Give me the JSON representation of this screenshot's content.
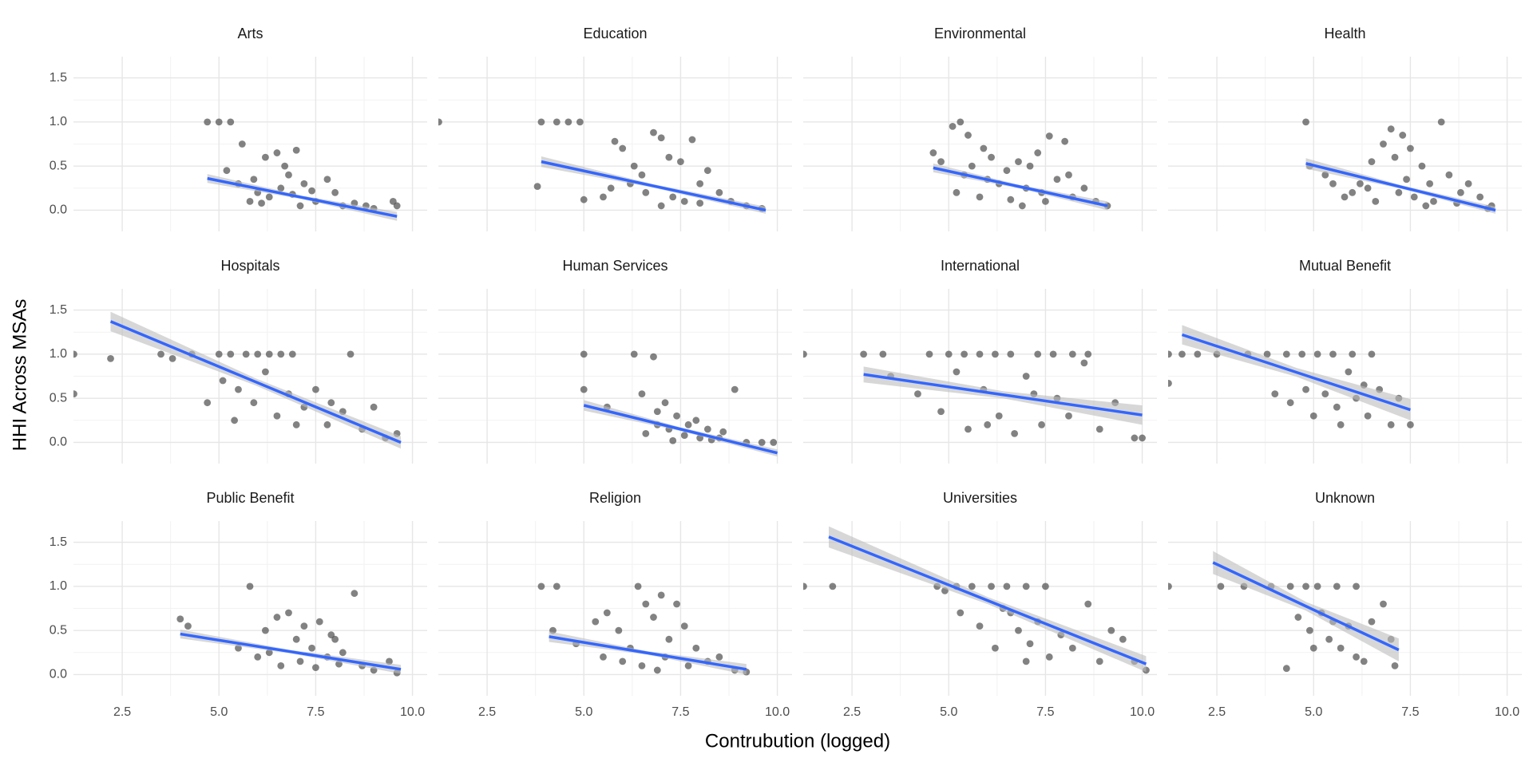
{
  "chart_data": {
    "type": "scatter",
    "x_label": "Contrubution (logged)",
    "y_label": "HHI Across MSAs",
    "xlim": [
      1.24,
      10.38
    ],
    "ylim": [
      -0.24,
      1.74
    ],
    "xticks": [
      2.5,
      {
        "value": 5,
        "label": "5.0"
      },
      7.5,
      {
        "value": 10,
        "label": "10.0"
      }
    ],
    "yticks": [
      {
        "value": 0,
        "label": "0.0"
      },
      0.5,
      {
        "value": 1,
        "label": "1.0"
      },
      1.5
    ],
    "grid": true,
    "point_color": "#4d4d4d",
    "line_color": "#3366ff",
    "band_color": "#bdbdbd",
    "facets": [
      {
        "title": "Arts",
        "x": [
          4.7,
          5.0,
          5.3,
          5.6,
          5.2,
          6.2,
          6.5,
          6.7,
          7.0,
          6.8,
          5.5,
          6.0,
          6.3,
          6.6,
          7.2,
          7.5,
          7.8,
          8.0,
          8.2,
          8.5,
          9.0,
          9.5,
          9.6,
          5.8,
          7.1,
          8.8,
          6.9,
          7.4,
          5.9,
          6.1
        ],
        "values": [
          1,
          1,
          1,
          0.75,
          0.45,
          0.6,
          0.65,
          0.5,
          0.68,
          0.4,
          0.3,
          0.2,
          0.15,
          0.25,
          0.3,
          0.1,
          0.35,
          0.2,
          0.05,
          0.08,
          0.02,
          0.1,
          0.05,
          0.1,
          0.05,
          0.05,
          0.18,
          0.22,
          0.35,
          0.08
        ],
        "fit": {
          "x": [
            4.7,
            7.15,
            9.6
          ],
          "values": [
            0.36,
            0.145,
            -0.07
          ],
          "lower": [
            0.31,
            0.125,
            -0.12
          ],
          "upper": [
            0.41,
            0.165,
            -0.02
          ]
        }
      },
      {
        "title": "Education",
        "x": [
          1.25,
          3.8,
          3.9,
          4.3,
          4.6,
          4.9,
          5.0,
          5.5,
          5.8,
          6.0,
          6.3,
          6.5,
          6.8,
          7.0,
          7.2,
          7.5,
          7.8,
          8.0,
          8.2,
          8.5,
          8.8,
          9.2,
          9.6,
          6.6,
          7.3,
          7.6,
          6.2,
          7.0,
          8.0,
          5.7
        ],
        "values": [
          1,
          0.27,
          1,
          1,
          1,
          1,
          0.12,
          0.15,
          0.78,
          0.7,
          0.5,
          0.4,
          0.88,
          0.82,
          0.6,
          0.55,
          0.8,
          0.3,
          0.45,
          0.2,
          0.1,
          0.05,
          0.02,
          0.2,
          0.15,
          0.1,
          0.3,
          0.05,
          0.08,
          0.25
        ],
        "fit": {
          "x": [
            3.9,
            6.8,
            9.7
          ],
          "values": [
            0.55,
            0.275,
            0.0
          ],
          "lower": [
            0.49,
            0.255,
            -0.04
          ],
          "upper": [
            0.61,
            0.295,
            0.04
          ]
        }
      },
      {
        "title": "Environmental",
        "x": [
          4.6,
          4.8,
          5.1,
          5.3,
          5.5,
          5.6,
          5.9,
          6.1,
          6.3,
          6.5,
          6.8,
          7.1,
          7.3,
          7.4,
          7.6,
          7.8,
          8.0,
          8.2,
          8.5,
          8.8,
          9.1,
          5.2,
          5.8,
          6.6,
          7.0,
          6.0,
          5.4,
          7.5,
          6.9,
          8.1
        ],
        "values": [
          0.65,
          0.55,
          0.95,
          1.0,
          0.85,
          0.5,
          0.7,
          0.6,
          0.3,
          0.45,
          0.55,
          0.5,
          0.65,
          0.2,
          0.84,
          0.35,
          0.78,
          0.15,
          0.25,
          0.1,
          0.05,
          0.2,
          0.15,
          0.12,
          0.25,
          0.35,
          0.4,
          0.1,
          0.05,
          0.4
        ],
        "fit": {
          "x": [
            4.6,
            6.85,
            9.1
          ],
          "values": [
            0.48,
            0.265,
            0.05
          ],
          "lower": [
            0.43,
            0.245,
            0.0
          ],
          "upper": [
            0.53,
            0.285,
            0.1
          ]
        }
      },
      {
        "title": "Health",
        "x": [
          4.8,
          4.9,
          5.3,
          5.8,
          6.2,
          6.5,
          6.8,
          7.0,
          7.3,
          7.5,
          7.1,
          7.8,
          8.0,
          8.3,
          8.5,
          8.8,
          9.0,
          9.3,
          9.6,
          6.0,
          6.6,
          7.2,
          7.6,
          8.1,
          8.7,
          7.4,
          6.4,
          5.5,
          9.5,
          7.9
        ],
        "values": [
          1.0,
          0.5,
          0.4,
          0.15,
          0.3,
          0.55,
          0.75,
          0.92,
          0.85,
          0.7,
          0.6,
          0.5,
          0.3,
          1.0,
          0.4,
          0.2,
          0.3,
          0.15,
          0.05,
          0.2,
          0.1,
          0.2,
          0.15,
          0.1,
          0.08,
          0.35,
          0.25,
          0.3,
          0.02,
          0.05
        ],
        "fit": {
          "x": [
            4.8,
            7.25,
            9.7
          ],
          "values": [
            0.53,
            0.265,
            0.0
          ],
          "lower": [
            0.47,
            0.245,
            -0.04
          ],
          "upper": [
            0.59,
            0.285,
            0.04
          ]
        }
      },
      {
        "title": "Hospitals",
        "x": [
          1.25,
          1.25,
          2.2,
          3.5,
          3.8,
          4.3,
          4.7,
          5.0,
          5.3,
          5.7,
          6.0,
          6.3,
          6.6,
          6.9,
          5.4,
          5.5,
          5.9,
          6.2,
          6.5,
          6.8,
          7.2,
          7.5,
          7.8,
          8.2,
          8.4,
          8.7,
          9.0,
          9.3,
          9.6,
          7.0,
          7.9,
          5.1
        ],
        "values": [
          1.0,
          0.55,
          0.95,
          1.0,
          0.95,
          1.0,
          0.45,
          1.0,
          1.0,
          1.0,
          1.0,
          1.0,
          1.0,
          1.0,
          0.25,
          0.6,
          0.45,
          0.8,
          0.3,
          0.55,
          0.4,
          0.6,
          0.2,
          0.35,
          1.0,
          0.15,
          0.4,
          0.05,
          0.1,
          0.2,
          0.45,
          0.7
        ],
        "fit": {
          "x": [
            2.2,
            5.95,
            9.7
          ],
          "values": [
            1.37,
            0.685,
            0.0
          ],
          "lower": [
            1.26,
            0.645,
            -0.07
          ],
          "upper": [
            1.48,
            0.725,
            0.07
          ]
        }
      },
      {
        "title": "Human Services",
        "x": [
          5.0,
          6.3,
          6.8,
          5.0,
          5.6,
          6.5,
          6.9,
          7.1,
          7.4,
          7.7,
          7.9,
          8.2,
          8.5,
          8.9,
          9.2,
          9.6,
          9.9,
          6.6,
          7.2,
          7.6,
          8.0,
          6.9,
          8.6,
          7.3,
          8.3
        ],
        "values": [
          1.0,
          1.0,
          0.97,
          0.6,
          0.4,
          0.55,
          0.35,
          0.45,
          0.3,
          0.2,
          0.25,
          0.15,
          0.05,
          0.6,
          0.0,
          0.0,
          0.0,
          0.1,
          0.15,
          0.08,
          0.05,
          0.2,
          0.12,
          0.02,
          0.03
        ],
        "fit": {
          "x": [
            5.0,
            7.5,
            10.0
          ],
          "values": [
            0.42,
            0.15,
            -0.12
          ],
          "lower": [
            0.36,
            0.13,
            -0.16
          ],
          "upper": [
            0.48,
            0.17,
            -0.08
          ]
        }
      },
      {
        "title": "International",
        "x": [
          1.25,
          2.8,
          3.3,
          4.5,
          5.0,
          5.4,
          5.8,
          6.2,
          6.6,
          7.3,
          7.7,
          8.2,
          8.6,
          3.5,
          4.2,
          4.8,
          5.2,
          5.5,
          5.9,
          6.3,
          6.7,
          7.0,
          7.4,
          7.8,
          8.1,
          8.5,
          8.9,
          9.3,
          9.8,
          10.0,
          6.0,
          7.2
        ],
        "values": [
          1.0,
          1.0,
          1.0,
          1.0,
          1.0,
          1.0,
          1.0,
          1.0,
          1.0,
          1.0,
          1.0,
          1.0,
          1.0,
          0.75,
          0.55,
          0.35,
          0.8,
          0.15,
          0.6,
          0.3,
          0.1,
          0.75,
          0.2,
          0.5,
          0.3,
          0.9,
          0.15,
          0.45,
          0.05,
          0.05,
          0.2,
          0.55
        ],
        "fit": {
          "x": [
            2.8,
            6.4,
            10.0
          ],
          "values": [
            0.77,
            0.54,
            0.31
          ],
          "lower": [
            0.68,
            0.5,
            0.2
          ],
          "upper": [
            0.86,
            0.58,
            0.42
          ]
        }
      },
      {
        "title": "Mutual Benefit",
        "x": [
          1.25,
          1.25,
          1.6,
          2.0,
          2.5,
          3.3,
          3.8,
          4.3,
          4.7,
          5.1,
          5.5,
          6.0,
          6.5,
          4.0,
          4.4,
          4.8,
          5.0,
          5.3,
          5.6,
          5.9,
          6.1,
          6.4,
          6.7,
          7.0,
          7.2,
          7.5,
          5.7,
          6.3
        ],
        "values": [
          1.0,
          0.67,
          1.0,
          1.0,
          1.0,
          1.0,
          1.0,
          1.0,
          1.0,
          1.0,
          1.0,
          1.0,
          1.0,
          0.55,
          0.45,
          0.6,
          0.3,
          0.55,
          0.4,
          0.8,
          0.5,
          0.3,
          0.6,
          0.2,
          0.5,
          0.2,
          0.2,
          0.65
        ],
        "fit": {
          "x": [
            1.6,
            4.55,
            7.5
          ],
          "values": [
            1.22,
            0.795,
            0.37
          ],
          "lower": [
            1.11,
            0.745,
            0.25
          ],
          "upper": [
            1.33,
            0.845,
            0.49
          ]
        }
      },
      {
        "title": "Public Benefit",
        "x": [
          4.0,
          4.2,
          5.8,
          5.5,
          6.0,
          6.2,
          6.5,
          6.8,
          7.0,
          7.2,
          7.4,
          7.6,
          7.8,
          8.0,
          8.2,
          8.5,
          8.7,
          9.0,
          9.4,
          9.6,
          6.6,
          7.1,
          7.5,
          6.3,
          8.1,
          7.9
        ],
        "values": [
          0.63,
          0.55,
          1.0,
          0.3,
          0.2,
          0.5,
          0.65,
          0.7,
          0.4,
          0.55,
          0.3,
          0.6,
          0.2,
          0.4,
          0.25,
          0.92,
          0.1,
          0.05,
          0.15,
          0.02,
          0.1,
          0.15,
          0.08,
          0.25,
          0.12,
          0.45
        ],
        "fit": {
          "x": [
            4.0,
            6.85,
            9.7
          ],
          "values": [
            0.46,
            0.26,
            0.06
          ],
          "lower": [
            0.41,
            0.24,
            0.01
          ],
          "upper": [
            0.51,
            0.28,
            0.11
          ]
        }
      },
      {
        "title": "Religion",
        "x": [
          3.9,
          4.3,
          4.2,
          4.8,
          5.3,
          5.6,
          5.9,
          6.2,
          6.4,
          6.6,
          6.8,
          7.0,
          7.2,
          7.4,
          7.6,
          7.9,
          8.2,
          8.5,
          8.9,
          9.2,
          6.0,
          6.5,
          7.1,
          7.7,
          5.5,
          6.9
        ],
        "values": [
          1.0,
          1.0,
          0.5,
          0.35,
          0.6,
          0.7,
          0.5,
          0.3,
          1.0,
          0.8,
          0.65,
          0.9,
          0.4,
          0.8,
          0.55,
          0.3,
          0.15,
          0.2,
          0.05,
          0.03,
          0.15,
          0.1,
          0.2,
          0.1,
          0.2,
          0.05
        ],
        "fit": {
          "x": [
            4.1,
            6.65,
            9.2
          ],
          "values": [
            0.43,
            0.245,
            0.06
          ],
          "lower": [
            0.37,
            0.225,
            0.0
          ],
          "upper": [
            0.49,
            0.265,
            0.12
          ]
        }
      },
      {
        "title": "Universities",
        "x": [
          1.25,
          2.0,
          4.7,
          5.2,
          5.6,
          6.1,
          6.5,
          7.0,
          7.5,
          4.9,
          5.3,
          5.8,
          6.2,
          6.4,
          6.8,
          7.1,
          7.3,
          7.6,
          7.9,
          8.2,
          8.6,
          8.9,
          9.2,
          9.5,
          9.8,
          10.1,
          7.0,
          6.6
        ],
        "values": [
          1.0,
          1.0,
          1.0,
          1.0,
          1.0,
          1.0,
          1.0,
          1.0,
          1.0,
          0.95,
          0.7,
          0.55,
          0.3,
          0.75,
          0.5,
          0.35,
          0.6,
          0.2,
          0.45,
          0.3,
          0.8,
          0.15,
          0.5,
          0.4,
          0.15,
          0.05,
          0.15,
          0.7
        ],
        "fit": {
          "x": [
            1.9,
            6.0,
            10.1
          ],
          "values": [
            1.56,
            0.84,
            0.12
          ],
          "lower": [
            1.44,
            0.8,
            0.03
          ],
          "upper": [
            1.68,
            0.88,
            0.21
          ]
        }
      },
      {
        "title": "Unknown",
        "x": [
          1.25,
          2.6,
          3.2,
          3.9,
          4.4,
          4.8,
          5.1,
          5.6,
          6.1,
          4.3,
          4.6,
          4.9,
          5.2,
          5.4,
          5.7,
          5.9,
          6.1,
          6.3,
          6.5,
          6.8,
          7.0,
          7.1,
          5.0,
          5.5
        ],
        "values": [
          1.0,
          1.0,
          1.0,
          1.0,
          1.0,
          1.0,
          1.0,
          1.0,
          1.0,
          0.07,
          0.65,
          0.5,
          0.7,
          0.4,
          0.3,
          0.55,
          0.2,
          0.15,
          0.6,
          0.8,
          0.4,
          0.1,
          0.3,
          0.6
        ],
        "fit": {
          "x": [
            2.4,
            4.8,
            7.2
          ],
          "values": [
            1.27,
            0.775,
            0.28
          ],
          "lower": [
            1.14,
            0.725,
            0.15
          ],
          "upper": [
            1.4,
            0.825,
            0.41
          ]
        }
      }
    ]
  }
}
